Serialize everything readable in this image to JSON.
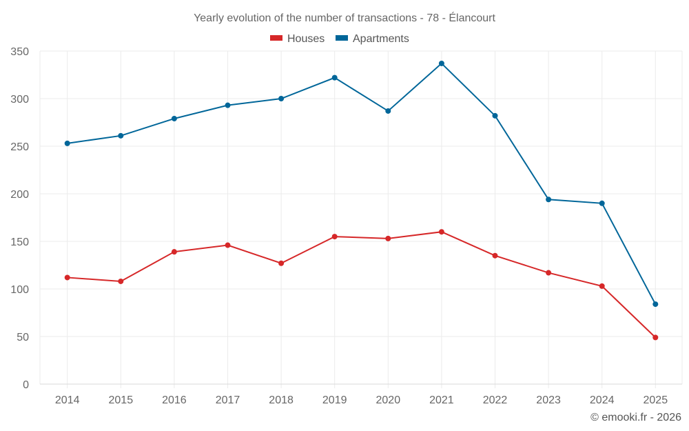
{
  "chart_data": {
    "type": "line",
    "title": "Yearly evolution of the number of transactions - 78 - Élancourt",
    "xlabel": "",
    "ylabel": "",
    "categories": [
      "2014",
      "2015",
      "2016",
      "2017",
      "2018",
      "2019",
      "2020",
      "2021",
      "2022",
      "2023",
      "2024",
      "2025"
    ],
    "ylim": [
      0,
      350
    ],
    "yticks": [
      0,
      50,
      100,
      150,
      200,
      250,
      300,
      350
    ],
    "grid": true,
    "legend_position": "top-center",
    "series": [
      {
        "name": "Houses",
        "color": "#d62728",
        "values": [
          112,
          108,
          139,
          146,
          127,
          155,
          153,
          160,
          135,
          117,
          103,
          49
        ]
      },
      {
        "name": "Apartments",
        "color": "#006699",
        "values": [
          253,
          261,
          279,
          293,
          300,
          322,
          287,
          337,
          282,
          194,
          190,
          84
        ]
      }
    ],
    "credit": "© emooki.fr - 2026"
  }
}
